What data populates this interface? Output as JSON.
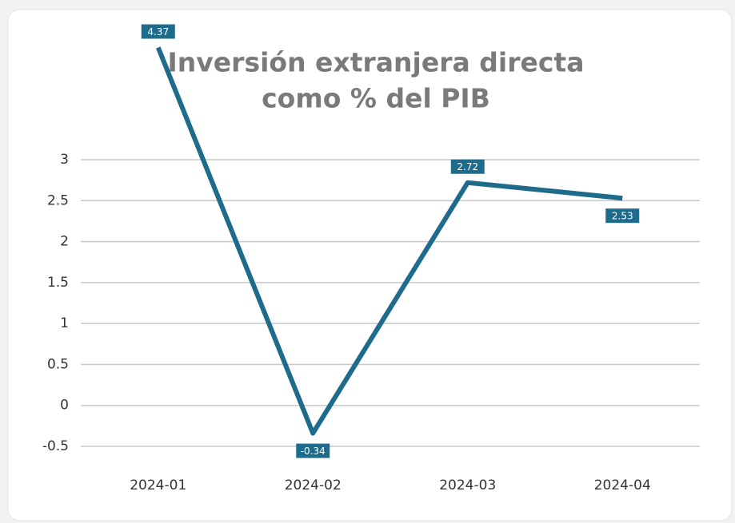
{
  "chart_data": {
    "type": "line",
    "title": [
      "Inversión extranjera directa",
      "como % del PIB"
    ],
    "categories": [
      "2024-01",
      "2024-02",
      "2024-03",
      "2024-04"
    ],
    "values": [
      4.37,
      -0.34,
      2.72,
      2.53
    ],
    "color": "#1f6b8c",
    "ylim": [
      -0.5,
      3
    ],
    "yticks": [
      {
        "value": -0.5,
        "label": "-0.5"
      },
      0,
      0.5,
      1,
      1.5,
      2,
      2.5,
      3
    ],
    "grid": true
  }
}
